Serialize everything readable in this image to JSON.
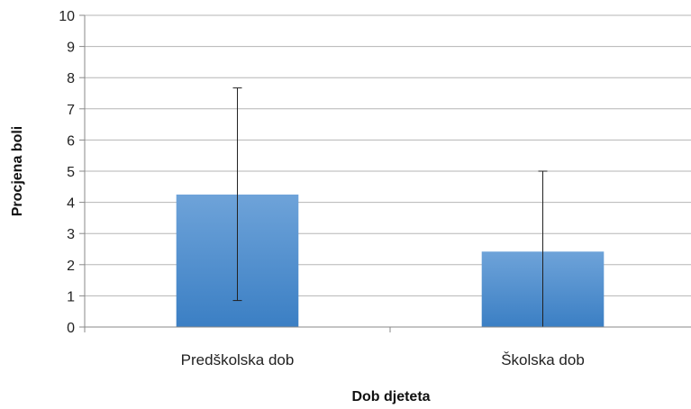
{
  "chart_data": {
    "type": "bar",
    "title": "",
    "xlabel": "Dob djeteta",
    "ylabel": "Procjena boli",
    "categories": [
      "Predškolska dob",
      "Školska dob"
    ],
    "values": [
      4.25,
      2.42
    ],
    "error_bars": [
      {
        "low": 0.85,
        "high": 7.67
      },
      {
        "low": 0.0,
        "high": 5.0
      }
    ],
    "ylim": [
      0,
      10
    ],
    "yticks": [
      "0",
      "1",
      "2",
      "3",
      "4",
      "5",
      "6",
      "7",
      "8",
      "9",
      "10"
    ],
    "grid": true,
    "legend": "none",
    "colors": {
      "bar_top": "#6ea3d9",
      "bar_bottom": "#3b7fc4",
      "grid": "#b5b5b5",
      "axis": "#888888",
      "error": "#222222"
    }
  }
}
